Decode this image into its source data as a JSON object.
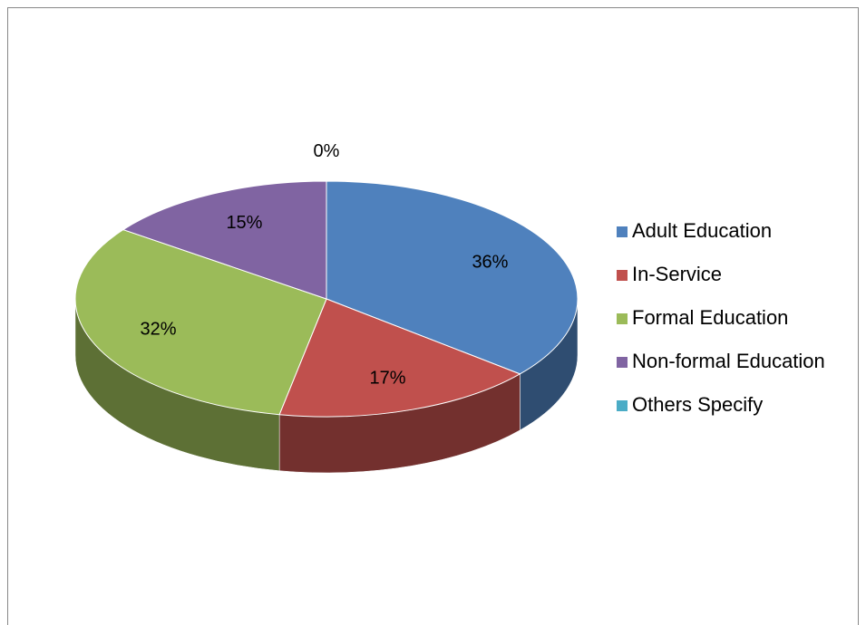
{
  "chart_data": {
    "type": "pie",
    "categories": [
      "Adult Education",
      "In-Service",
      "Formal Education",
      "Non-formal Education",
      "Others Specify"
    ],
    "values": [
      36,
      17,
      32,
      15,
      0
    ],
    "value_labels": [
      "36%",
      "17%",
      "32%",
      "15%",
      "0%"
    ],
    "colors": [
      "#4f81bd",
      "#c0504d",
      "#9bbb59",
      "#8064a2",
      "#4bacc6"
    ],
    "legend": "right"
  }
}
